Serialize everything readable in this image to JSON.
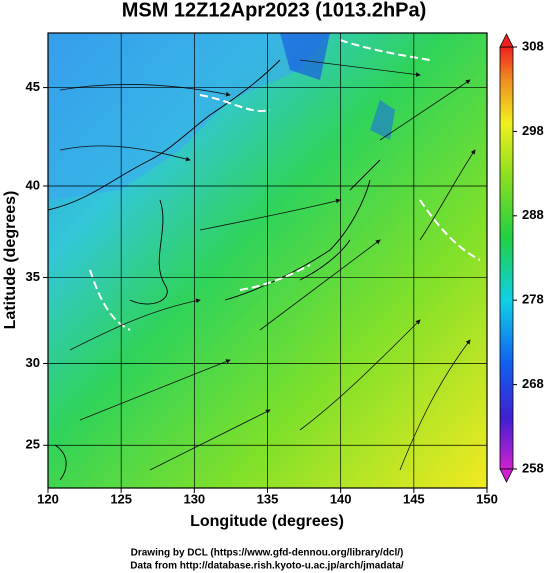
{
  "chart_data": {
    "type": "map",
    "title": "MSM 12Z12Apr2023 (1013.2hPa)",
    "xlabel": "Longitude (degrees)",
    "ylabel": "Latitude  (degrees)",
    "xlim": [
      120,
      150
    ],
    "xticks": [
      120,
      125,
      130,
      135,
      140,
      145,
      150
    ],
    "ylim": [
      22.3,
      47.6
    ],
    "yticks": [
      25,
      30,
      35,
      40,
      45
    ],
    "projection": "mercator",
    "grid": true,
    "colorbar": {
      "lim": [
        258,
        308
      ],
      "ticks": [
        258,
        268,
        278,
        288,
        298,
        308
      ]
    }
  },
  "footer": [
    "Drawing by DCL (https://www.gfd-dennou.org/library/dcl/)",
    "Data from http://database.rish.kyoto-u.ac.jp/arch/jmadata/"
  ]
}
